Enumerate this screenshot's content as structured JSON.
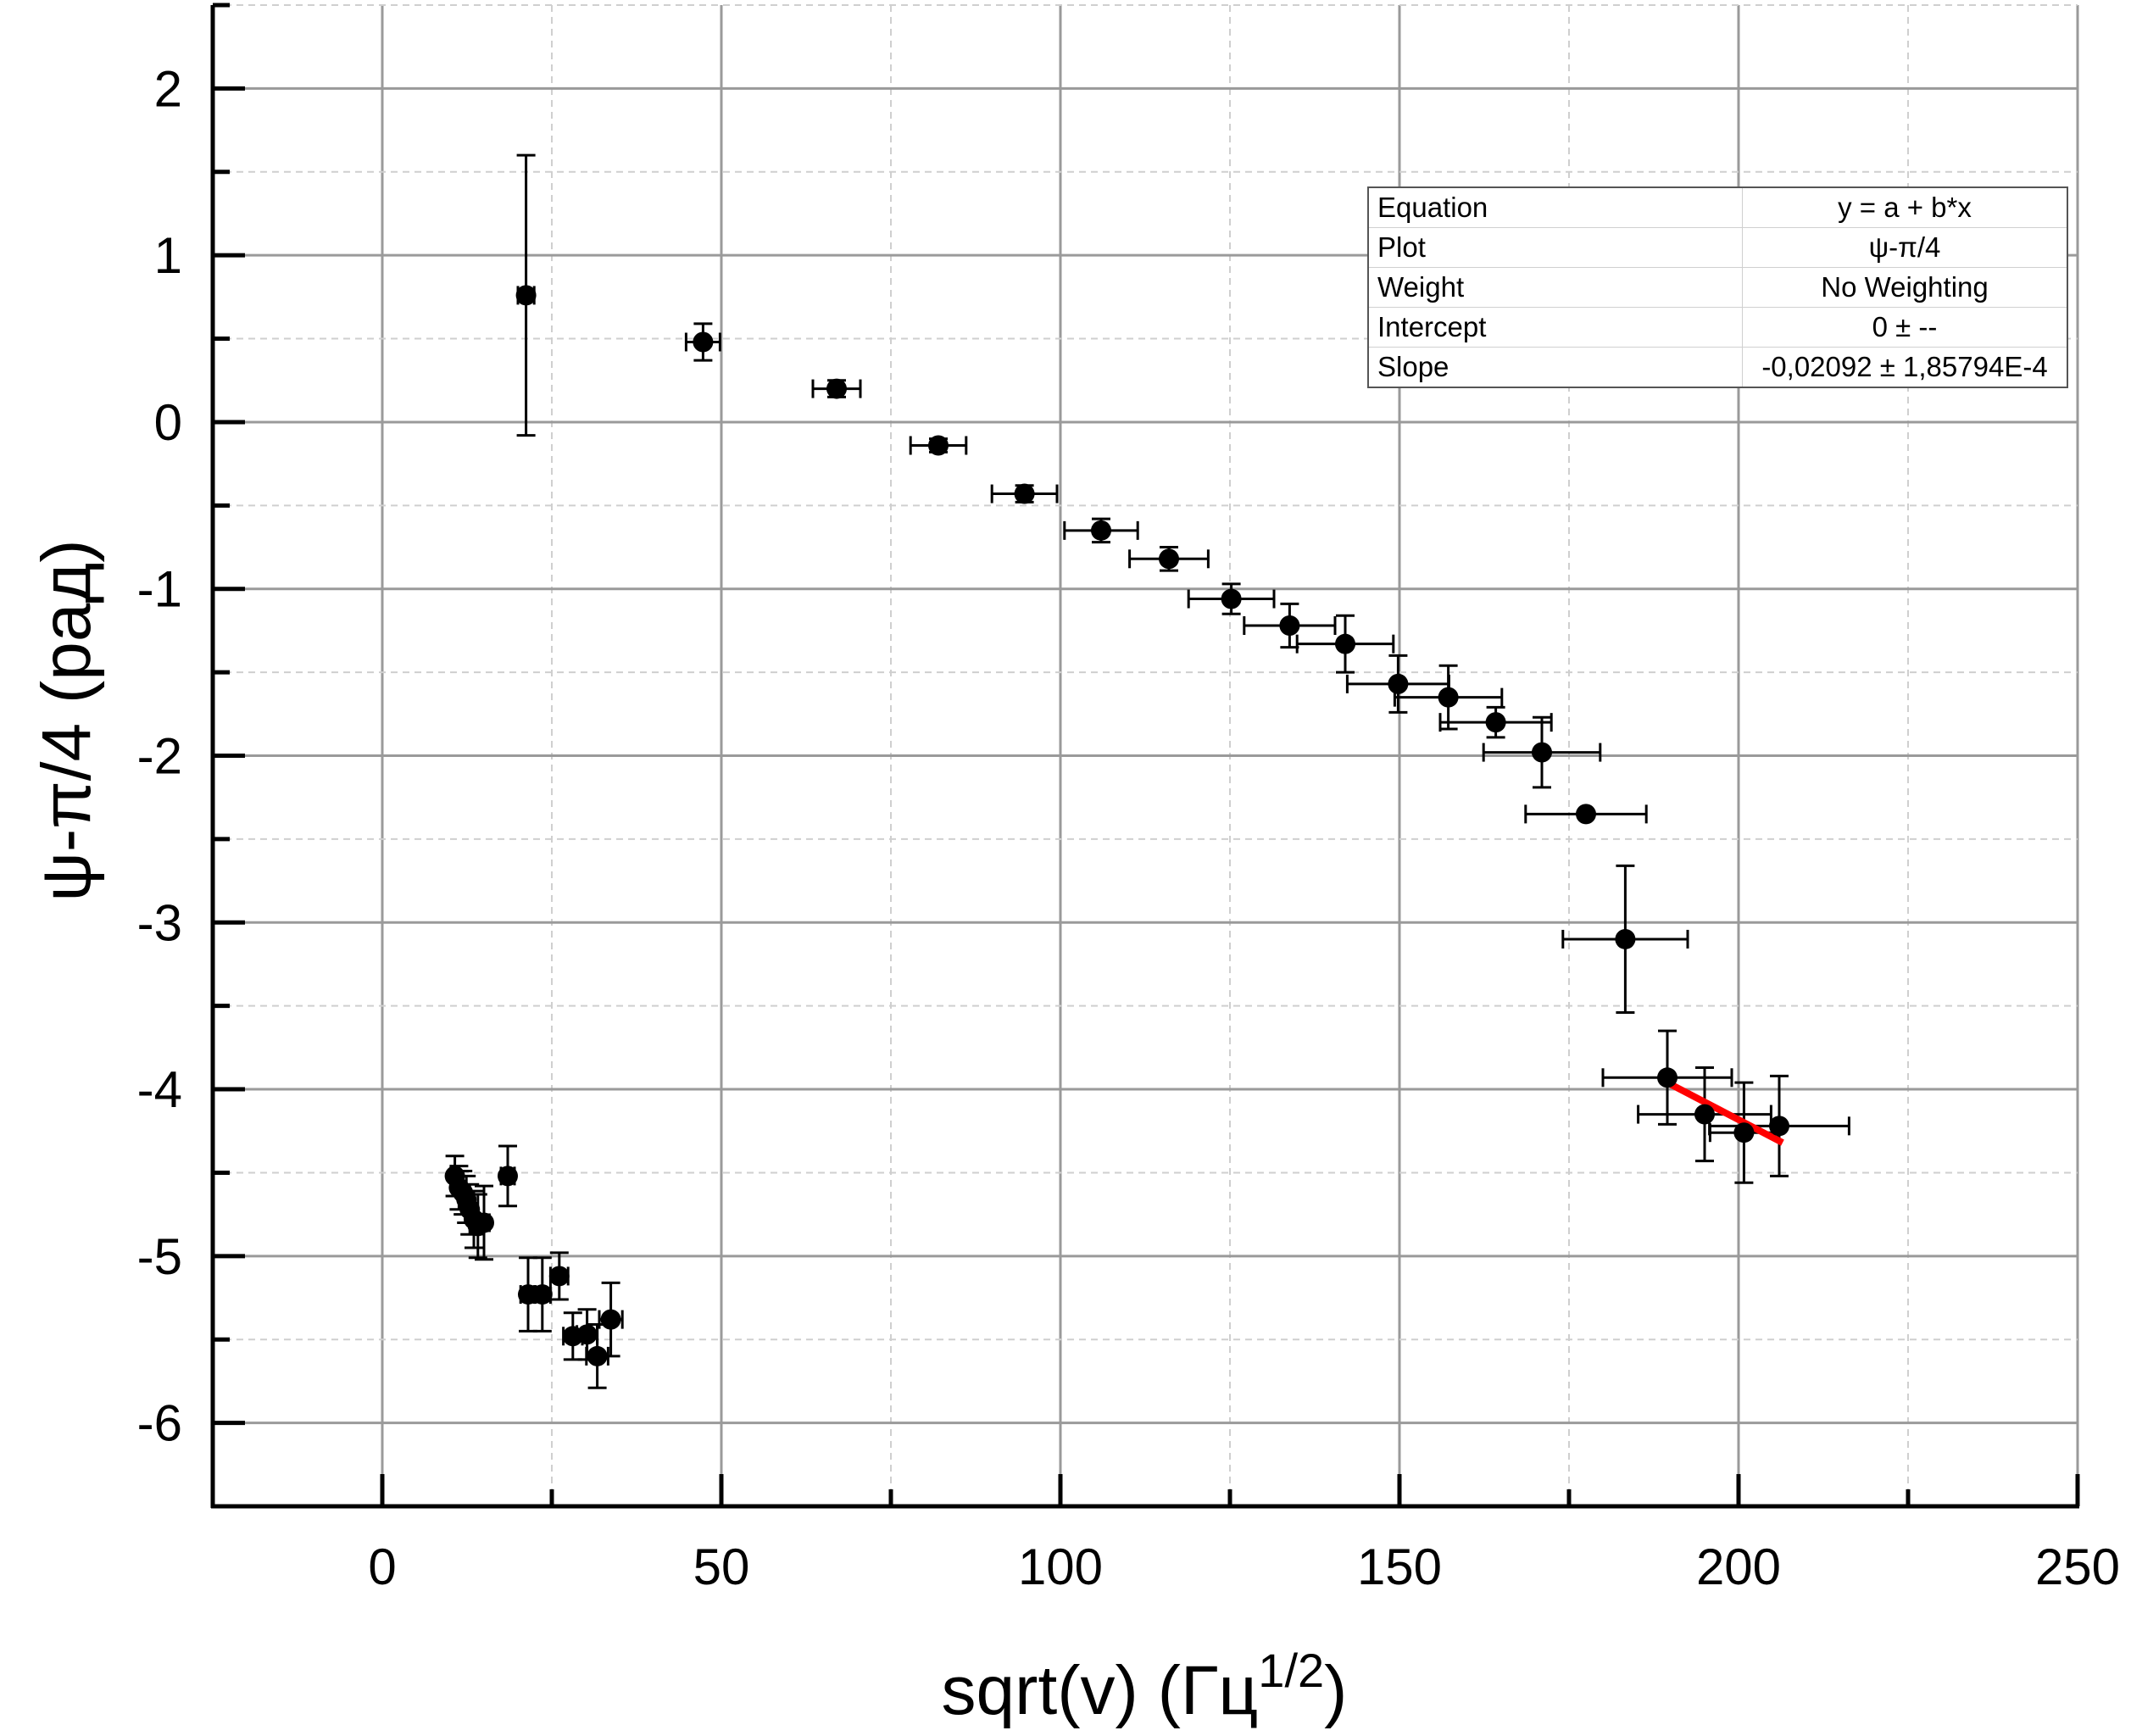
{
  "chart_data": {
    "type": "scatter",
    "title": "",
    "xlabel_main": "sqrt(v) (Гц",
    "xlabel_sup": "1/2",
    "xlabel_close": ")",
    "ylabel": "ψ-π/4 (рад)",
    "xlim": [
      -25,
      250
    ],
    "ylim": [
      -6.5,
      2.5
    ],
    "x_ticks": [
      0,
      50,
      100,
      150,
      200,
      250
    ],
    "x_tick_labels": [
      "0",
      "50",
      "100",
      "150",
      "200",
      "250"
    ],
    "y_ticks": [
      2,
      1,
      0,
      -1,
      -2,
      -3,
      -4,
      -5,
      -6
    ],
    "y_tick_labels": [
      "2",
      "1",
      "0",
      "-1",
      "-2",
      "-3",
      "-4",
      "-5",
      "-6"
    ],
    "grid": true,
    "points": [
      {
        "x": 21.2,
        "y": 0.76,
        "xerr": 1.2,
        "yerr": 0.84
      },
      {
        "x": 47.3,
        "y": 0.48,
        "xerr": 2.5,
        "yerr": 0.11
      },
      {
        "x": 67.0,
        "y": 0.2,
        "xerr": 3.5,
        "yerr": 0.05
      },
      {
        "x": 82.0,
        "y": -0.14,
        "xerr": 4.1,
        "yerr": 0.04
      },
      {
        "x": 94.7,
        "y": -0.43,
        "xerr": 4.8,
        "yerr": 0.05
      },
      {
        "x": 106.0,
        "y": -0.65,
        "xerr": 5.4,
        "yerr": 0.07
      },
      {
        "x": 116.0,
        "y": -0.82,
        "xerr": 5.8,
        "yerr": 0.07
      },
      {
        "x": 125.2,
        "y": -1.06,
        "xerr": 6.3,
        "yerr": 0.09
      },
      {
        "x": 133.8,
        "y": -1.22,
        "xerr": 6.7,
        "yerr": 0.13
      },
      {
        "x": 142.0,
        "y": -1.33,
        "xerr": 7.1,
        "yerr": 0.17
      },
      {
        "x": 149.8,
        "y": -1.57,
        "xerr": 7.5,
        "yerr": 0.17
      },
      {
        "x": 157.2,
        "y": -1.65,
        "xerr": 7.9,
        "yerr": 0.19
      },
      {
        "x": 164.2,
        "y": -1.8,
        "xerr": 8.2,
        "yerr": 0.09
      },
      {
        "x": 171.0,
        "y": -1.98,
        "xerr": 8.6,
        "yerr": 0.21
      },
      {
        "x": 177.5,
        "y": -2.35,
        "xerr": 8.9,
        "yerr": 0.01
      },
      {
        "x": 183.3,
        "y": -3.1,
        "xerr": 9.2,
        "yerr": 0.44
      },
      {
        "x": 189.5,
        "y": -3.93,
        "xerr": 9.5,
        "yerr": 0.28
      },
      {
        "x": 195.0,
        "y": -4.15,
        "xerr": 9.8,
        "yerr": 0.28
      },
      {
        "x": 200.8,
        "y": -4.26,
        "xerr": 5.0,
        "yerr": 0.3
      },
      {
        "x": 206.0,
        "y": -4.22,
        "xerr": 10.3,
        "yerr": 0.3
      },
      {
        "x": 10.7,
        "y": -4.52,
        "xerr": 0.6,
        "yerr": 0.12
      },
      {
        "x": 11.3,
        "y": -4.59,
        "xerr": 0.6,
        "yerr": 0.13
      },
      {
        "x": 11.9,
        "y": -4.62,
        "xerr": 0.6,
        "yerr": 0.13
      },
      {
        "x": 12.4,
        "y": -4.66,
        "xerr": 0.7,
        "yerr": 0.14
      },
      {
        "x": 12.9,
        "y": -4.72,
        "xerr": 0.7,
        "yerr": 0.15
      },
      {
        "x": 13.5,
        "y": -4.78,
        "xerr": 0.7,
        "yerr": 0.17
      },
      {
        "x": 14.1,
        "y": -4.82,
        "xerr": 0.7,
        "yerr": 0.19
      },
      {
        "x": 15.0,
        "y": -4.8,
        "xerr": 0.8,
        "yerr": 0.22
      },
      {
        "x": 18.5,
        "y": -4.52,
        "xerr": 1.0,
        "yerr": 0.18
      },
      {
        "x": 21.5,
        "y": -5.23,
        "xerr": 1.1,
        "yerr": 0.22
      },
      {
        "x": 23.6,
        "y": -5.23,
        "xerr": 1.2,
        "yerr": 0.22
      },
      {
        "x": 26.1,
        "y": -5.12,
        "xerr": 1.3,
        "yerr": 0.14
      },
      {
        "x": 28.1,
        "y": -5.48,
        "xerr": 1.4,
        "yerr": 0.14
      },
      {
        "x": 30.2,
        "y": -5.47,
        "xerr": 1.5,
        "yerr": 0.15
      },
      {
        "x": 31.7,
        "y": -5.6,
        "xerr": 1.6,
        "yerr": 0.19
      },
      {
        "x": 33.7,
        "y": -5.38,
        "xerr": 1.7,
        "yerr": 0.22
      }
    ],
    "fit_line": {
      "x": [
        189.5,
        206.5
      ],
      "y": [
        -3.96,
        -4.32
      ],
      "color": "#ff0000"
    },
    "marker_color": "#000000"
  },
  "legend_table": {
    "rows": [
      {
        "key": "Equation",
        "value": "y = a + b*x"
      },
      {
        "key": "Plot",
        "value": "ψ-π/4"
      },
      {
        "key": "Weight",
        "value": "No Weighting"
      },
      {
        "key": "Intercept",
        "value": "0 ± --"
      },
      {
        "key": "Slope",
        "value": "-0,02092 ± 1,85794E-4"
      }
    ]
  }
}
